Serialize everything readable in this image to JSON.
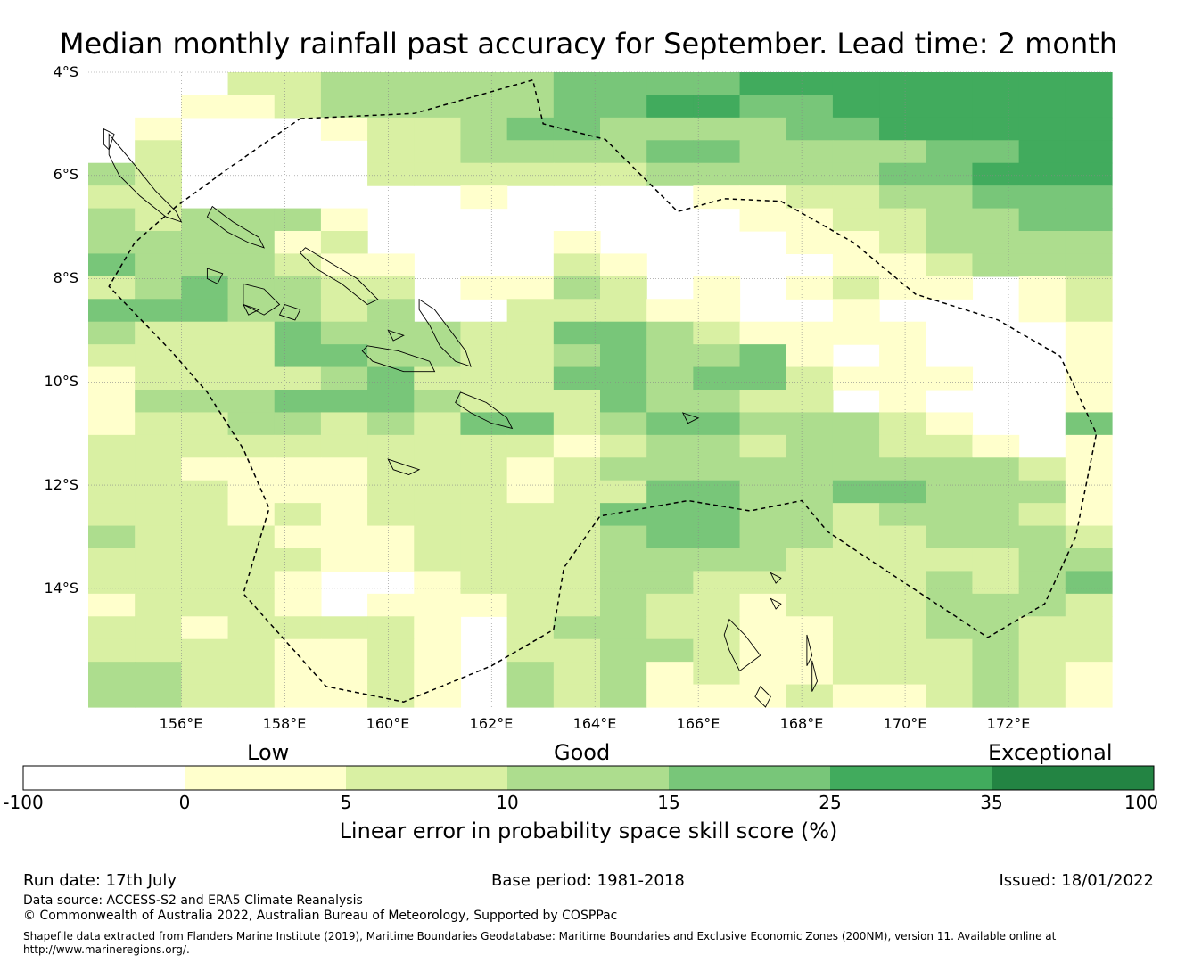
{
  "title": "Median monthly rainfall past accuracy for September. Lead time: 2 month",
  "map": {
    "lat_labels": [
      "4°S",
      "6°S",
      "8°S",
      "10°S",
      "12°S",
      "14°S"
    ],
    "lon_labels": [
      "156°E",
      "158°E",
      "160°E",
      "162°E",
      "164°E",
      "166°E",
      "168°E",
      "170°E",
      "172°E"
    ],
    "lat_range": [
      -16.3,
      -4.0
    ],
    "lon_range": [
      154.2,
      174.0
    ]
  },
  "colorbar": {
    "category_labels": [
      "Low",
      "Good",
      "Exceptional"
    ],
    "tick_labels": [
      "-100",
      "0",
      "5",
      "10",
      "15",
      "25",
      "35",
      "100"
    ],
    "colors": [
      "#ffffff",
      "#ffffcc",
      "#d9f0a3",
      "#addd8e",
      "#78c679",
      "#41ab5d",
      "#238443"
    ],
    "label": "Linear error in probability space skill score (%)"
  },
  "footer": {
    "run_date": "Run date: 17th July",
    "base_period": "Base period: 1981-2018",
    "issued": "Issued: 18/01/2022",
    "data_source": "Data source: ACCESS-S2 and ERA5 Climate Reanalysis",
    "copyright": "© Commonwealth of Australia 2022, Australian Bureau of Meteorology, Supported by COSPPac",
    "shapefile_line1": "Shapefile data extracted from Flanders Marine Institute (2019), Maritime Boundaries Geodatabase: Maritime Boundaries and Exclusive Economic Zones (200NM), version 11. Available online at",
    "shapefile_line2": "http://www.marineregions.org/."
  },
  "grid_cells": [
    "0002233333444455555555",
    "0011233333445544555555",
    "0100012234433334455555",
    "0200002233334433334455",
    "3200002222223333344555",
    "2200000010000112233444",
    "3233310000000011223344",
    "3333120000100001123333",
    "4333211000210000112333",
    "2343322011320101211012",
    "4443323002221100100012",
    "3222433322443211110001",
    "2222443322343341010001",
    "1222234222443442111001",
    "1333444322243322010001",
    "1223323244234433321004",
    "2222222222123323322101",
    "2211112221233333333321",
    "2221112221224433443331",
    "2221212222244433233321",
    "3222111222234433223332",
    "2222211222233332222233",
    "2222100122233222223234",
    "1222101112232212223332",
    "2212222102332211223322",
    "2222112102233211222322",
    "3322112103231211222321",
    "3322112103231112112321"
  ],
  "islands": [
    {
      "name": "Bougainville",
      "points": [
        [
          154.6,
          -5.2
        ],
        [
          155.1,
          -5.8
        ],
        [
          155.5,
          -6.3
        ],
        [
          155.9,
          -6.7
        ],
        [
          156.0,
          -6.9
        ],
        [
          155.7,
          -6.8
        ],
        [
          155.2,
          -6.4
        ],
        [
          154.8,
          -6.0
        ],
        [
          154.6,
          -5.6
        ]
      ]
    },
    {
      "name": "Buka",
      "points": [
        [
          154.5,
          -5.1
        ],
        [
          154.7,
          -5.2
        ],
        [
          154.6,
          -5.5
        ],
        [
          154.5,
          -5.4
        ]
      ]
    },
    {
      "name": "Choiseul",
      "points": [
        [
          156.6,
          -6.6
        ],
        [
          157.0,
          -6.9
        ],
        [
          157.5,
          -7.2
        ],
        [
          157.6,
          -7.4
        ],
        [
          157.3,
          -7.3
        ],
        [
          156.9,
          -7.1
        ],
        [
          156.5,
          -6.8
        ]
      ]
    },
    {
      "name": "Santa Isabel",
      "points": [
        [
          158.4,
          -7.4
        ],
        [
          158.9,
          -7.7
        ],
        [
          159.4,
          -8.0
        ],
        [
          159.8,
          -8.4
        ],
        [
          159.6,
          -8.5
        ],
        [
          159.1,
          -8.1
        ],
        [
          158.6,
          -7.8
        ],
        [
          158.3,
          -7.5
        ]
      ]
    },
    {
      "name": "New Georgia",
      "points": [
        [
          157.2,
          -8.1
        ],
        [
          157.6,
          -8.2
        ],
        [
          157.9,
          -8.5
        ],
        [
          157.6,
          -8.7
        ],
        [
          157.2,
          -8.5
        ]
      ]
    },
    {
      "name": "Vella Lavella",
      "points": [
        [
          156.5,
          -7.8
        ],
        [
          156.8,
          -7.9
        ],
        [
          156.7,
          -8.1
        ],
        [
          156.5,
          -8.0
        ]
      ]
    },
    {
      "name": "Rendova",
      "points": [
        [
          157.2,
          -8.5
        ],
        [
          157.5,
          -8.6
        ],
        [
          157.3,
          -8.7
        ]
      ]
    },
    {
      "name": "Vangunu",
      "points": [
        [
          158.0,
          -8.5
        ],
        [
          158.3,
          -8.6
        ],
        [
          158.2,
          -8.8
        ],
        [
          157.9,
          -8.7
        ]
      ]
    },
    {
      "name": "Malaita",
      "points": [
        [
          160.6,
          -8.4
        ],
        [
          160.9,
          -8.6
        ],
        [
          161.2,
          -9.0
        ],
        [
          161.5,
          -9.4
        ],
        [
          161.6,
          -9.7
        ],
        [
          161.3,
          -9.6
        ],
        [
          161.0,
          -9.3
        ],
        [
          160.8,
          -8.9
        ],
        [
          160.6,
          -8.6
        ]
      ]
    },
    {
      "name": "Guadalcanal",
      "points": [
        [
          159.6,
          -9.3
        ],
        [
          160.2,
          -9.4
        ],
        [
          160.8,
          -9.6
        ],
        [
          160.9,
          -9.8
        ],
        [
          160.3,
          -9.8
        ],
        [
          159.7,
          -9.6
        ],
        [
          159.5,
          -9.4
        ]
      ]
    },
    {
      "name": "Florida Islands",
      "points": [
        [
          160.0,
          -9.0
        ],
        [
          160.3,
          -9.1
        ],
        [
          160.1,
          -9.2
        ]
      ]
    },
    {
      "name": "Makira",
      "points": [
        [
          161.4,
          -10.2
        ],
        [
          161.9,
          -10.4
        ],
        [
          162.3,
          -10.7
        ],
        [
          162.4,
          -10.9
        ],
        [
          162.0,
          -10.8
        ],
        [
          161.6,
          -10.6
        ],
        [
          161.3,
          -10.4
        ]
      ]
    },
    {
      "name": "Rennell",
      "points": [
        [
          160.0,
          -11.5
        ],
        [
          160.3,
          -11.6
        ],
        [
          160.6,
          -11.7
        ],
        [
          160.4,
          -11.8
        ],
        [
          160.1,
          -11.7
        ]
      ]
    },
    {
      "name": "Nendo",
      "points": [
        [
          165.7,
          -10.6
        ],
        [
          166.0,
          -10.7
        ],
        [
          165.8,
          -10.8
        ]
      ]
    },
    {
      "name": "Espiritu Santo",
      "points": [
        [
          166.6,
          -14.6
        ],
        [
          166.9,
          -14.9
        ],
        [
          167.2,
          -15.3
        ],
        [
          166.8,
          -15.6
        ],
        [
          166.6,
          -15.2
        ],
        [
          166.5,
          -14.9
        ]
      ]
    },
    {
      "name": "Malekula",
      "points": [
        [
          167.2,
          -15.9
        ],
        [
          167.4,
          -16.1
        ],
        [
          167.3,
          -16.3
        ],
        [
          167.1,
          -16.1
        ]
      ]
    },
    {
      "name": "Maewo",
      "points": [
        [
          168.1,
          -14.9
        ],
        [
          168.2,
          -15.3
        ],
        [
          168.1,
          -15.5
        ]
      ]
    },
    {
      "name": "Pentecost",
      "points": [
        [
          168.2,
          -15.4
        ],
        [
          168.3,
          -15.8
        ],
        [
          168.2,
          -16.0
        ]
      ]
    },
    {
      "name": "Vanua Lava",
      "points": [
        [
          167.4,
          -13.7
        ],
        [
          167.6,
          -13.8
        ],
        [
          167.5,
          -13.9
        ]
      ]
    },
    {
      "name": "Gaua",
      "points": [
        [
          167.4,
          -14.2
        ],
        [
          167.6,
          -14.3
        ],
        [
          167.5,
          -14.4
        ]
      ]
    }
  ],
  "boundary": [
    [
      158.3,
      -4.9
    ],
    [
      160.5,
      -4.8
    ],
    [
      162.8,
      -4.15
    ],
    [
      163.0,
      -5.0
    ],
    [
      164.2,
      -5.3
    ],
    [
      165.6,
      -6.7
    ],
    [
      166.5,
      -6.45
    ],
    [
      167.6,
      -6.5
    ],
    [
      169.0,
      -7.3
    ],
    [
      170.2,
      -8.3
    ],
    [
      171.8,
      -8.8
    ],
    [
      173.0,
      -9.5
    ],
    [
      173.7,
      -11.0
    ],
    [
      173.3,
      -13.0
    ],
    [
      172.7,
      -14.3
    ],
    [
      171.6,
      -14.95
    ],
    [
      170.0,
      -13.9
    ],
    [
      168.5,
      -12.9
    ],
    [
      168.0,
      -12.3
    ],
    [
      167.0,
      -12.5
    ],
    [
      165.8,
      -12.3
    ],
    [
      164.1,
      -12.6
    ],
    [
      163.4,
      -13.6
    ],
    [
      163.2,
      -14.8
    ],
    [
      162.0,
      -15.5
    ],
    [
      160.3,
      -16.2
    ],
    [
      158.8,
      -15.9
    ],
    [
      157.2,
      -14.1
    ],
    [
      157.7,
      -12.45
    ],
    [
      157.2,
      -11.3
    ],
    [
      156.5,
      -10.2
    ],
    [
      155.8,
      -9.4
    ],
    [
      154.6,
      -8.15
    ],
    [
      155.1,
      -7.3
    ],
    [
      155.9,
      -6.6
    ],
    [
      157.0,
      -5.8
    ]
  ]
}
